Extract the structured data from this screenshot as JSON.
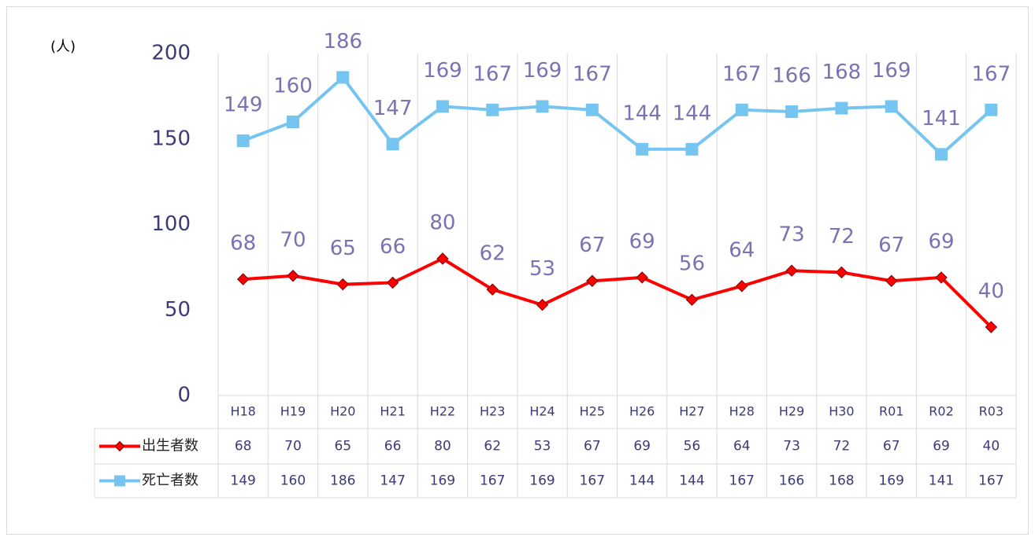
{
  "chart_data": {
    "type": "line",
    "y_label": "(人)",
    "categories": [
      "H18",
      "H19",
      "H20",
      "H21",
      "H22",
      "H23",
      "H24",
      "H25",
      "H26",
      "H27",
      "H28",
      "H29",
      "H30",
      "R01",
      "R02",
      "R03"
    ],
    "series": [
      {
        "name": "出生者数",
        "color": "#ff0000",
        "values": [
          68,
          70,
          65,
          66,
          80,
          62,
          53,
          67,
          69,
          56,
          64,
          73,
          72,
          67,
          69,
          40
        ]
      },
      {
        "name": "死亡者数",
        "color": "#75c5f0",
        "values": [
          149,
          160,
          186,
          147,
          169,
          167,
          169,
          167,
          144,
          144,
          167,
          166,
          168,
          169,
          141,
          167
        ]
      }
    ],
    "ylim": [
      0,
      200
    ],
    "yticks": [
      0,
      50,
      100,
      150,
      200
    ],
    "grid": true
  }
}
